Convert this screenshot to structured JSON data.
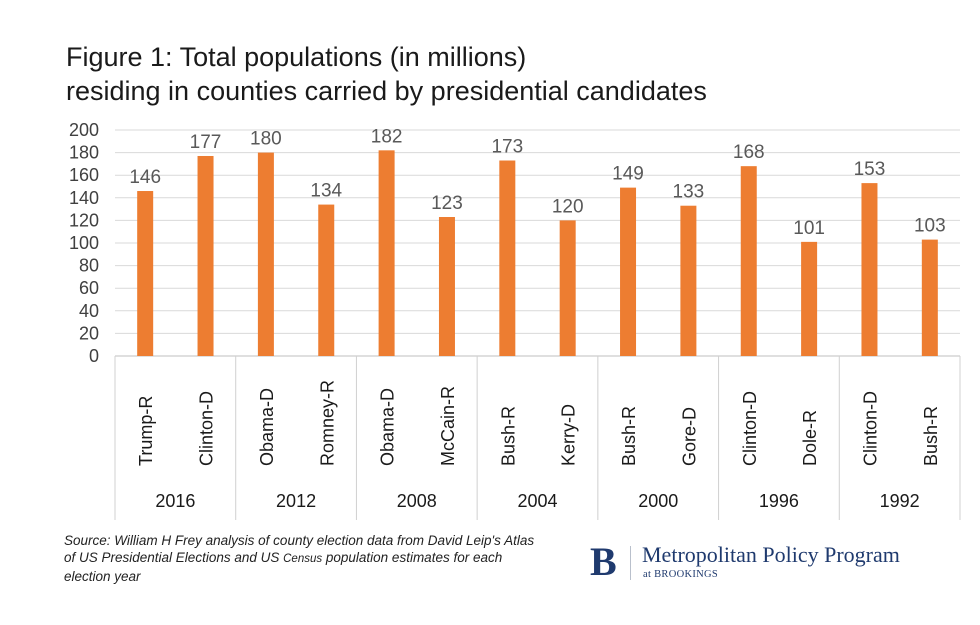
{
  "chart_data": {
    "type": "bar",
    "title_lines": [
      "Figure 1: Total populations (in millions)",
      "residing in counties carried by presidential candidates"
    ],
    "xlabel": "",
    "ylabel": "",
    "ylim": [
      0,
      200
    ],
    "yticks": [
      0,
      20,
      40,
      60,
      80,
      100,
      120,
      140,
      160,
      180,
      200
    ],
    "grid": true,
    "bar_color": "#ed7d31",
    "groups": [
      {
        "year": "2016",
        "bars": [
          {
            "label": "Trump-R",
            "value": 146
          },
          {
            "label": "Clinton-D",
            "value": 177
          }
        ]
      },
      {
        "year": "2012",
        "bars": [
          {
            "label": "Obama-D",
            "value": 180
          },
          {
            "label": "Romney-R",
            "value": 134
          }
        ]
      },
      {
        "year": "2008",
        "bars": [
          {
            "label": "Obama-D",
            "value": 182
          },
          {
            "label": "McCain-R",
            "value": 123
          }
        ]
      },
      {
        "year": "2004",
        "bars": [
          {
            "label": "Bush-R",
            "value": 173
          },
          {
            "label": "Kerry-D",
            "value": 120
          }
        ]
      },
      {
        "year": "2000",
        "bars": [
          {
            "label": "Bush-R",
            "value": 149
          },
          {
            "label": "Gore-D",
            "value": 133
          }
        ]
      },
      {
        "year": "1996",
        "bars": [
          {
            "label": "Clinton-D",
            "value": 168
          },
          {
            "label": "Dole-R",
            "value": 101
          }
        ]
      },
      {
        "year": "1992",
        "bars": [
          {
            "label": "Clinton-D",
            "value": 153
          },
          {
            "label": "Bush-R",
            "value": 103
          }
        ]
      }
    ]
  },
  "source": {
    "part1": "Source: William H Frey analysis of county election data from David Leip's Atlas of US Presidential Elections and US ",
    "part2": "Census",
    "part3": " population estimates for each election year"
  },
  "logo": {
    "letter": "B",
    "name": "Metropolitan Policy Program",
    "sub": "at BROOKINGS"
  }
}
